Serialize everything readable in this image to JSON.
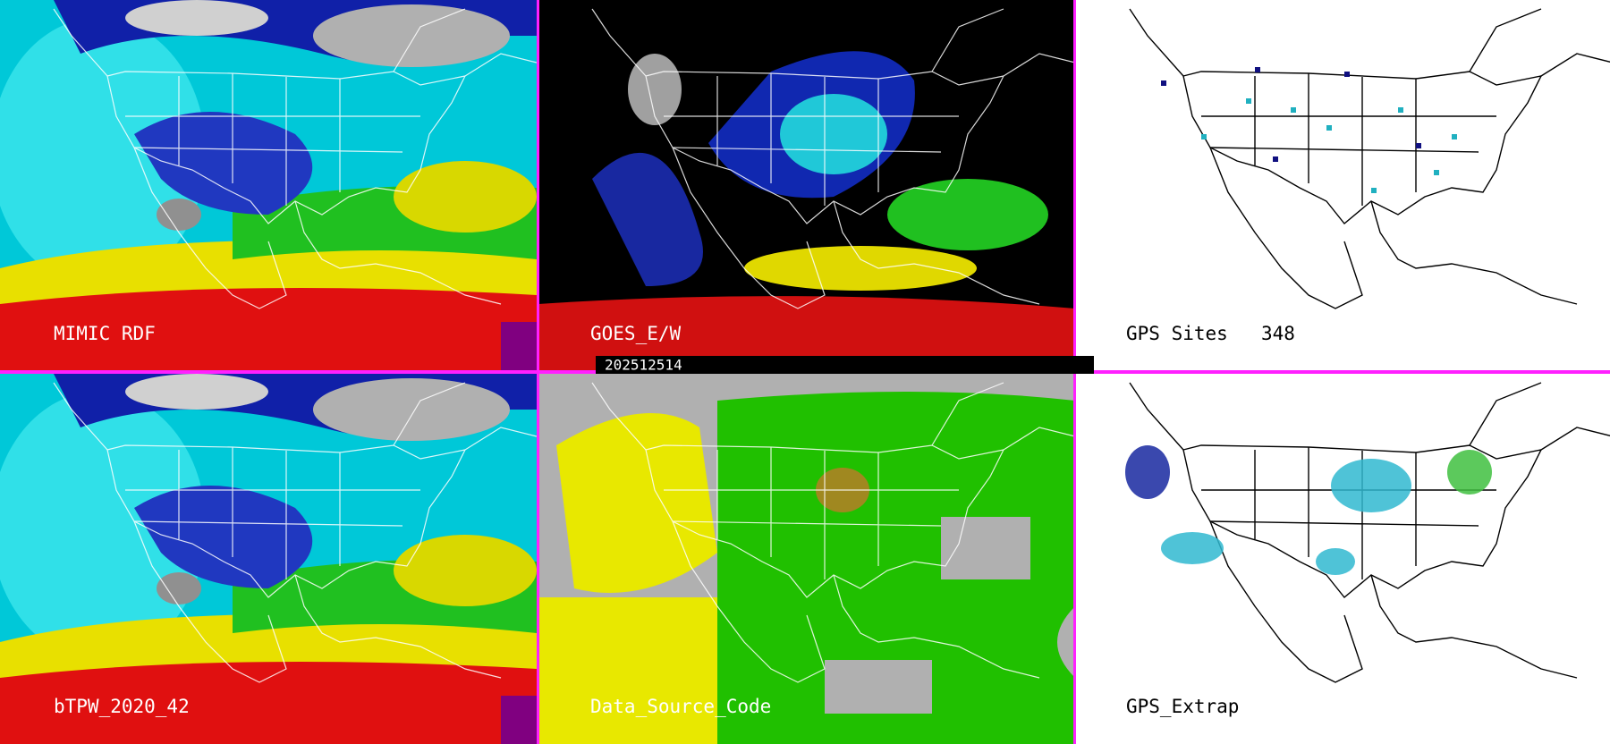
{
  "panels": [
    {
      "label": "MIMIC RDF"
    },
    {
      "label": "GOES_E/W"
    },
    {
      "label": "GPS Sites",
      "count": 348
    },
    {
      "label": "bTPW_2020_42"
    },
    {
      "label": "Data_Source_Code"
    },
    {
      "label": "GPS_Extrap"
    }
  ],
  "timestamp": "202512514"
}
